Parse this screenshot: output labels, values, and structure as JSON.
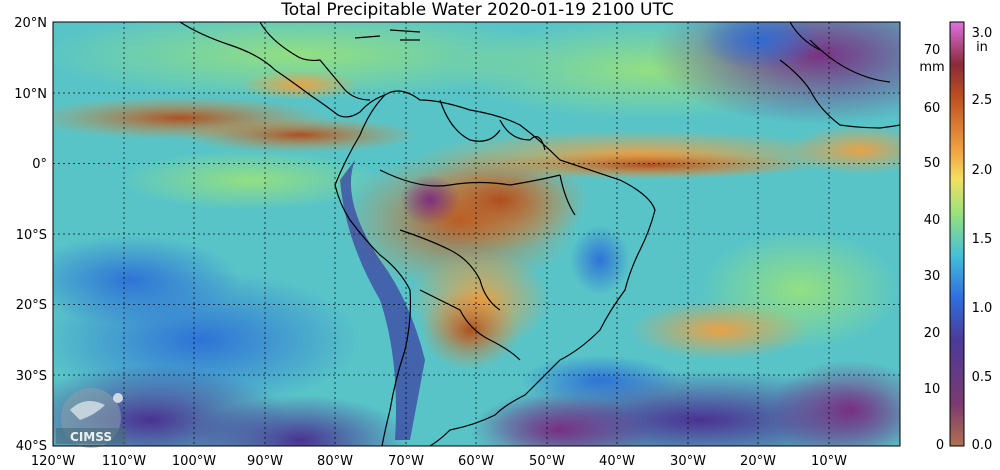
{
  "title": "Total Precipitable Water  2020-01-19 2100 UTC",
  "logo_text": "CIMSS",
  "lat_labels": [
    "20°N",
    "10°N",
    "0°",
    "10°S",
    "20°S",
    "30°S",
    "40°S"
  ],
  "lon_labels": [
    "120°W",
    "110°W",
    "100°W",
    "90°W",
    "80°W",
    "70°W",
    "60°W",
    "50°W",
    "40°W",
    "30°W",
    "20°W",
    "10°W"
  ],
  "colorbar": {
    "unit_mm": "mm",
    "unit_in": "in",
    "mm_ticks": [
      "0",
      "10",
      "20",
      "30",
      "40",
      "50",
      "60",
      "70"
    ],
    "in_ticks": [
      "0.0",
      "0.5",
      "1.0",
      "1.5",
      "2.0",
      "2.5",
      "3.0"
    ]
  },
  "colors": {
    "very_dry": "#6a2a78",
    "dry": "#3a68c8",
    "moderate": "#5ac8c8",
    "mid": "#a0e080",
    "moist": "#f2d860",
    "wet": "#e88a30",
    "very_wet": "#b04a1a",
    "extreme": "#e070e0"
  }
}
